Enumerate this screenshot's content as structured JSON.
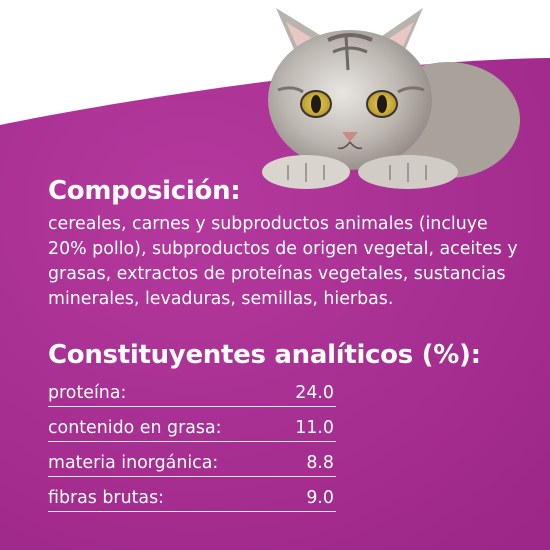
{
  "colors": {
    "background": "#a02a8b",
    "background_light": "#b3379c",
    "text": "#ffffff"
  },
  "composition": {
    "title": "Composición:",
    "text": "cereales, carnes y subproductos animales (incluye 20% pollo), subproductos de origen vegetal, aceites y grasas, extractos de proteínas vegetales, sustancias minerales, levaduras, semillas, hierbas."
  },
  "constituents": {
    "title": "Constituyentes analíticos (%):",
    "rows": [
      {
        "label": "proteína:",
        "value": "24.0"
      },
      {
        "label": "contenido en grasa:",
        "value": "11.0"
      },
      {
        "label": "materia inorgánica:",
        "value": "8.8"
      },
      {
        "label": "fibras brutas:",
        "value": "9.0"
      }
    ]
  },
  "image": {
    "subject": "tabby-cat-icon"
  }
}
